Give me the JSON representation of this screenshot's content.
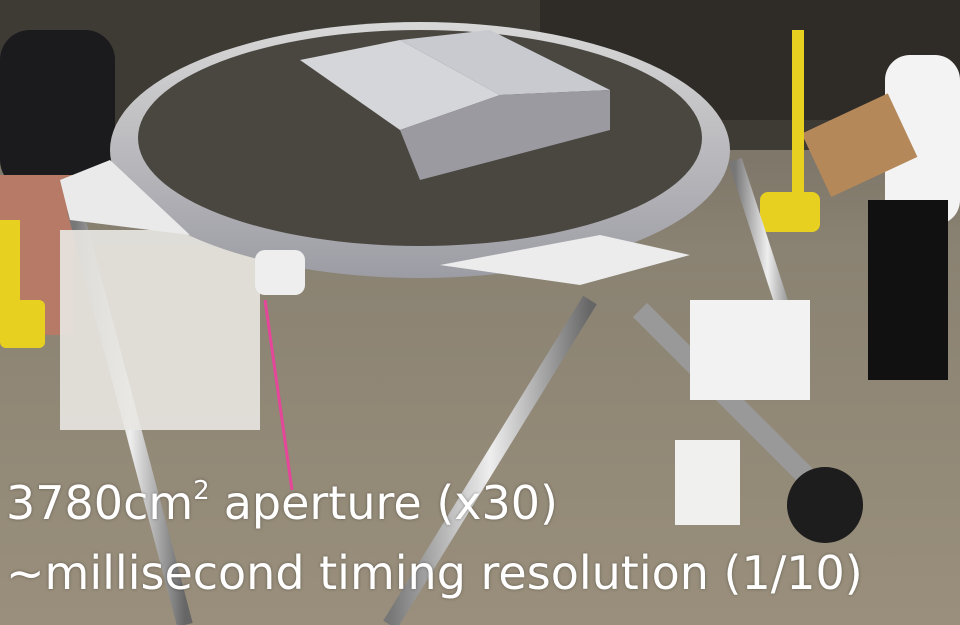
{
  "caption": {
    "lines": [
      {
        "base": "3780cm",
        "superscript": "2",
        "rest": "aperture (x30)"
      },
      {
        "text": "~millisecond timing resolution (1/10)"
      }
    ]
  }
}
